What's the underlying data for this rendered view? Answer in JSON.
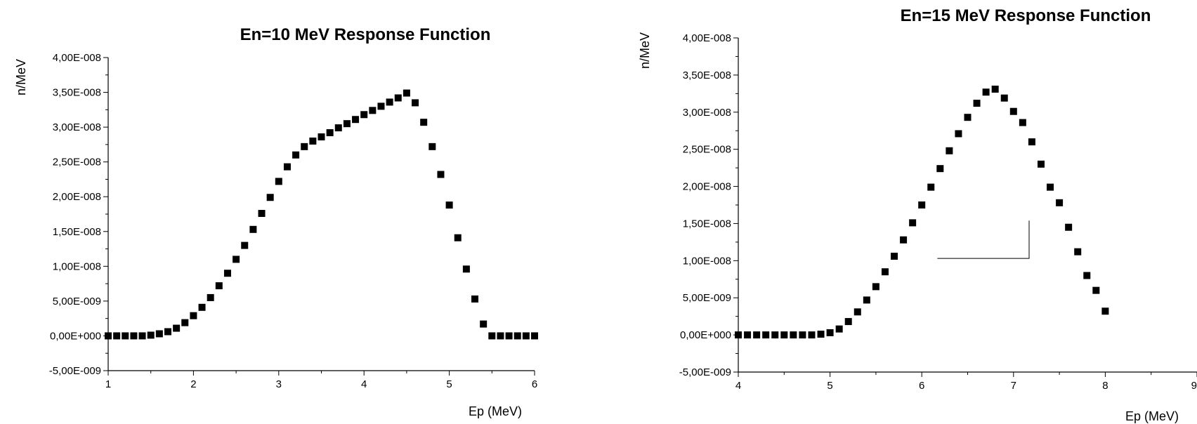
{
  "chart_data": [
    {
      "type": "scatter",
      "title": "En=10 MeV Response Function",
      "xlabel": "Ep (MeV)",
      "ylabel": "n/MeV",
      "xlim": [
        1,
        6
      ],
      "ylim": [
        -5e-09,
        4e-08
      ],
      "x_ticks": [
        "1",
        "2",
        "3",
        "4",
        "5",
        "6"
      ],
      "y_ticks": [
        "-5,00E-009",
        "0,00E+000",
        "5,00E-009",
        "1,00E-008",
        "1,50E-008",
        "2,00E-008",
        "2,50E-008",
        "3,00E-008",
        "3,50E-008",
        "4,00E-008"
      ],
      "marker": "square",
      "color": "#000000",
      "series": [
        {
          "x": [
            1.0,
            1.1,
            1.2,
            1.3,
            1.4,
            1.5,
            1.6,
            1.7,
            1.8,
            1.9,
            2.0,
            2.1,
            2.2,
            2.3,
            2.4,
            2.5,
            2.6,
            2.7,
            2.8,
            2.9,
            3.0,
            3.1,
            3.2,
            3.3,
            3.4,
            3.5,
            3.6,
            3.7,
            3.8,
            3.9,
            4.0,
            4.1,
            4.2,
            4.3,
            4.4,
            4.5,
            4.6,
            4.7,
            4.8,
            4.9,
            5.0,
            5.1,
            5.2,
            5.3,
            5.4,
            5.5,
            5.6,
            5.7,
            5.8,
            5.9,
            6.0
          ],
          "y": [
            0,
            0,
            0,
            0,
            0,
            1e-10,
            3e-10,
            6e-10,
            1.1e-09,
            1.9e-09,
            2.9e-09,
            4.1e-09,
            5.5e-09,
            7.2e-09,
            9e-09,
            1.1e-08,
            1.3e-08,
            1.53e-08,
            1.76e-08,
            1.99e-08,
            2.22e-08,
            2.43e-08,
            2.6e-08,
            2.72e-08,
            2.8e-08,
            2.86e-08,
            2.92e-08,
            2.99e-08,
            3.05e-08,
            3.11e-08,
            3.18e-08,
            3.24e-08,
            3.3e-08,
            3.36e-08,
            3.42e-08,
            3.49e-08,
            3.35e-08,
            3.07e-08,
            2.72e-08,
            2.32e-08,
            1.88e-08,
            1.41e-08,
            9.6e-09,
            5.3e-09,
            1.7e-09,
            0,
            0,
            0,
            0,
            0,
            0
          ]
        }
      ]
    },
    {
      "type": "scatter",
      "title": "En=15 MeV Response Function",
      "xlabel": "Ep (MeV)",
      "ylabel": "n/MeV",
      "xlim": [
        4,
        9
      ],
      "ylim": [
        -5e-09,
        4e-08
      ],
      "x_ticks": [
        "4",
        "5",
        "6",
        "7",
        "8",
        "9"
      ],
      "y_ticks": [
        "-5,00E-009",
        "0,00E+000",
        "5,00E-009",
        "1,00E-008",
        "1,50E-008",
        "2,00E-008",
        "2,50E-008",
        "3,00E-008",
        "3,50E-008",
        "4,00E-008"
      ],
      "marker": "square",
      "color": "#000000",
      "annotation_line": {
        "x": [
          6.17,
          7.17,
          7.17
        ],
        "y": [
          1.03e-08,
          1.03e-08,
          1.54e-08
        ]
      },
      "series": [
        {
          "x": [
            4.0,
            4.1,
            4.2,
            4.3,
            4.4,
            4.5,
            4.6,
            4.7,
            4.8,
            4.9,
            5.0,
            5.1,
            5.2,
            5.3,
            5.4,
            5.5,
            5.6,
            5.7,
            5.8,
            5.9,
            6.0,
            6.1,
            6.2,
            6.3,
            6.4,
            6.5,
            6.6,
            6.7,
            6.8,
            6.9,
            7.0,
            7.1,
            7.2,
            7.3,
            7.4,
            7.5,
            7.6,
            7.7,
            7.8,
            7.9,
            8.0
          ],
          "y": [
            0,
            0,
            0,
            0,
            0,
            0,
            0,
            0,
            0,
            1e-10,
            3e-10,
            8e-10,
            1.8e-09,
            3.1e-09,
            4.7e-09,
            6.5e-09,
            8.5e-09,
            1.06e-08,
            1.28e-08,
            1.51e-08,
            1.75e-08,
            1.99e-08,
            2.24e-08,
            2.48e-08,
            2.71e-08,
            2.93e-08,
            3.12e-08,
            3.27e-08,
            3.31e-08,
            3.19e-08,
            3.01e-08,
            2.86e-08,
            2.6e-08,
            2.3e-08,
            1.99e-08,
            1.78e-08,
            1.45e-08,
            1.12e-08,
            8e-09,
            6e-09,
            3.2e-09
          ]
        }
      ]
    }
  ]
}
